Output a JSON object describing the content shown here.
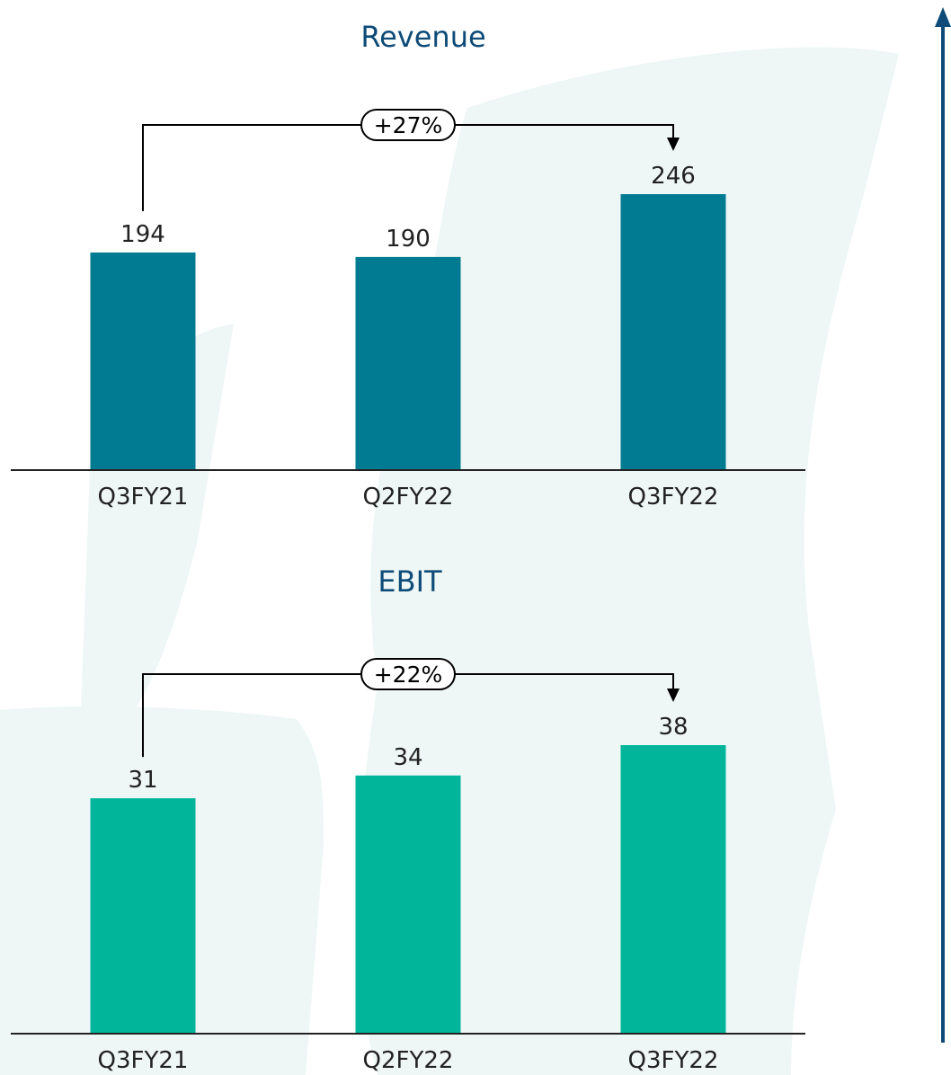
{
  "colors": {
    "revenue_bar": "#007b91",
    "ebit_bar": "#00b59a",
    "title": "#0e4b78",
    "side_arrow": "#0e4b78",
    "background_shape": "#eef7f6"
  },
  "chart_data": [
    {
      "type": "bar",
      "title": "Revenue",
      "categories": [
        "Q3FY21",
        "Q2FY22",
        "Q3FY22"
      ],
      "values": [
        194,
        190,
        246
      ],
      "value_labels": [
        "194",
        "190",
        "246"
      ],
      "ylim": [
        0,
        246
      ],
      "grid": false,
      "annotation": {
        "label": "+27%",
        "from": "Q3FY21",
        "to": "Q3FY22"
      }
    },
    {
      "type": "bar",
      "title": "EBIT",
      "categories": [
        "Q3FY21",
        "Q2FY22",
        "Q3FY22"
      ],
      "values": [
        31,
        34,
        38
      ],
      "value_labels": [
        "31",
        "34",
        "38"
      ],
      "ylim": [
        0,
        38
      ],
      "grid": false,
      "annotation": {
        "label": "+22%",
        "from": "Q3FY21",
        "to": "Q3FY22"
      }
    }
  ]
}
